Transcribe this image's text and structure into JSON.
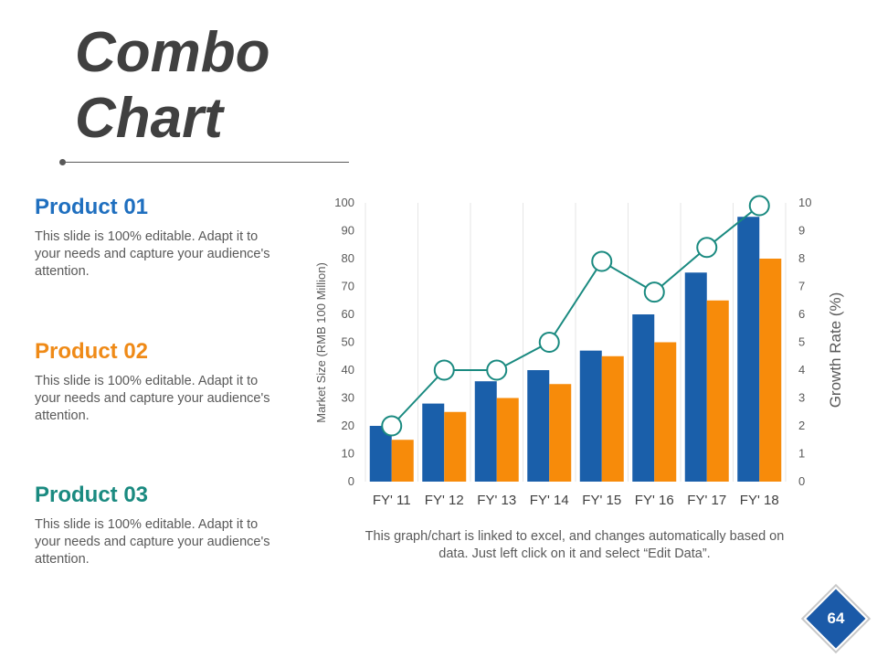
{
  "title": "Combo Chart",
  "products": [
    {
      "name": "Product 01",
      "color": "#1f6fbf",
      "text": "This slide is 100% editable. Adapt it to your needs and capture your audience's attention."
    },
    {
      "name": "Product 02",
      "color": "#ef8a17",
      "text": "This slide is 100% editable. Adapt it to your needs and capture your audience's attention."
    },
    {
      "name": "Product 03",
      "color": "#1a8a80",
      "text": "This slide is 100% editable. Adapt it to your needs and capture your audience's attention."
    }
  ],
  "note": "This graph/chart is linked to excel, and changes automatically based on data. Just left click on it and select “Edit Data”.",
  "page_number": "64",
  "chart_data": {
    "type": "bar",
    "categories": [
      "FY' 11",
      "FY' 12",
      "FY' 13",
      "FY' 14",
      "FY' 15",
      "FY' 16",
      "FY' 17",
      "FY' 18"
    ],
    "series": [
      {
        "type": "bar",
        "axis": "left",
        "color": "#1a5faa",
        "values": [
          20,
          28,
          36,
          40,
          47,
          60,
          75,
          95
        ]
      },
      {
        "type": "bar",
        "axis": "left",
        "color": "#f78b0a",
        "values": [
          15,
          25,
          30,
          35,
          45,
          50,
          65,
          80
        ]
      },
      {
        "type": "line",
        "axis": "right",
        "color": "#1a8a80",
        "values": [
          2,
          4,
          4,
          5,
          7.9,
          6.8,
          8.4,
          9.9
        ]
      }
    ],
    "ylabel": "Market Size (RMB 100 Million)",
    "y2label": "Growth Rate (%)",
    "ylim": [
      0,
      100
    ],
    "y2lim": [
      0,
      10
    ],
    "yticks": [
      0,
      10,
      20,
      30,
      40,
      50,
      60,
      70,
      80,
      90,
      100
    ],
    "y2ticks": [
      0,
      1,
      2,
      3,
      4,
      5,
      6,
      7,
      8,
      9,
      10
    ],
    "grid": "vertical"
  }
}
